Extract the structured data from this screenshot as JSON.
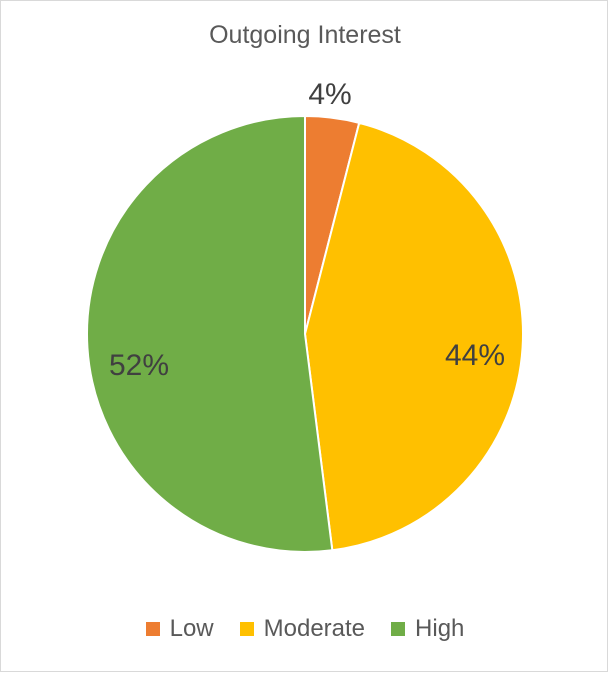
{
  "chart_data": {
    "type": "pie",
    "title": "Outgoing Interest",
    "categories": [
      "Low",
      "Moderate",
      "High"
    ],
    "values": [
      4,
      44,
      52
    ],
    "value_labels": [
      "4%",
      "44%",
      "52%"
    ],
    "colors": [
      "#ED7D31",
      "#FFC000",
      "#70AD47"
    ],
    "start_angle_deg": 0,
    "direction": "clockwise",
    "legend_position": "bottom"
  }
}
